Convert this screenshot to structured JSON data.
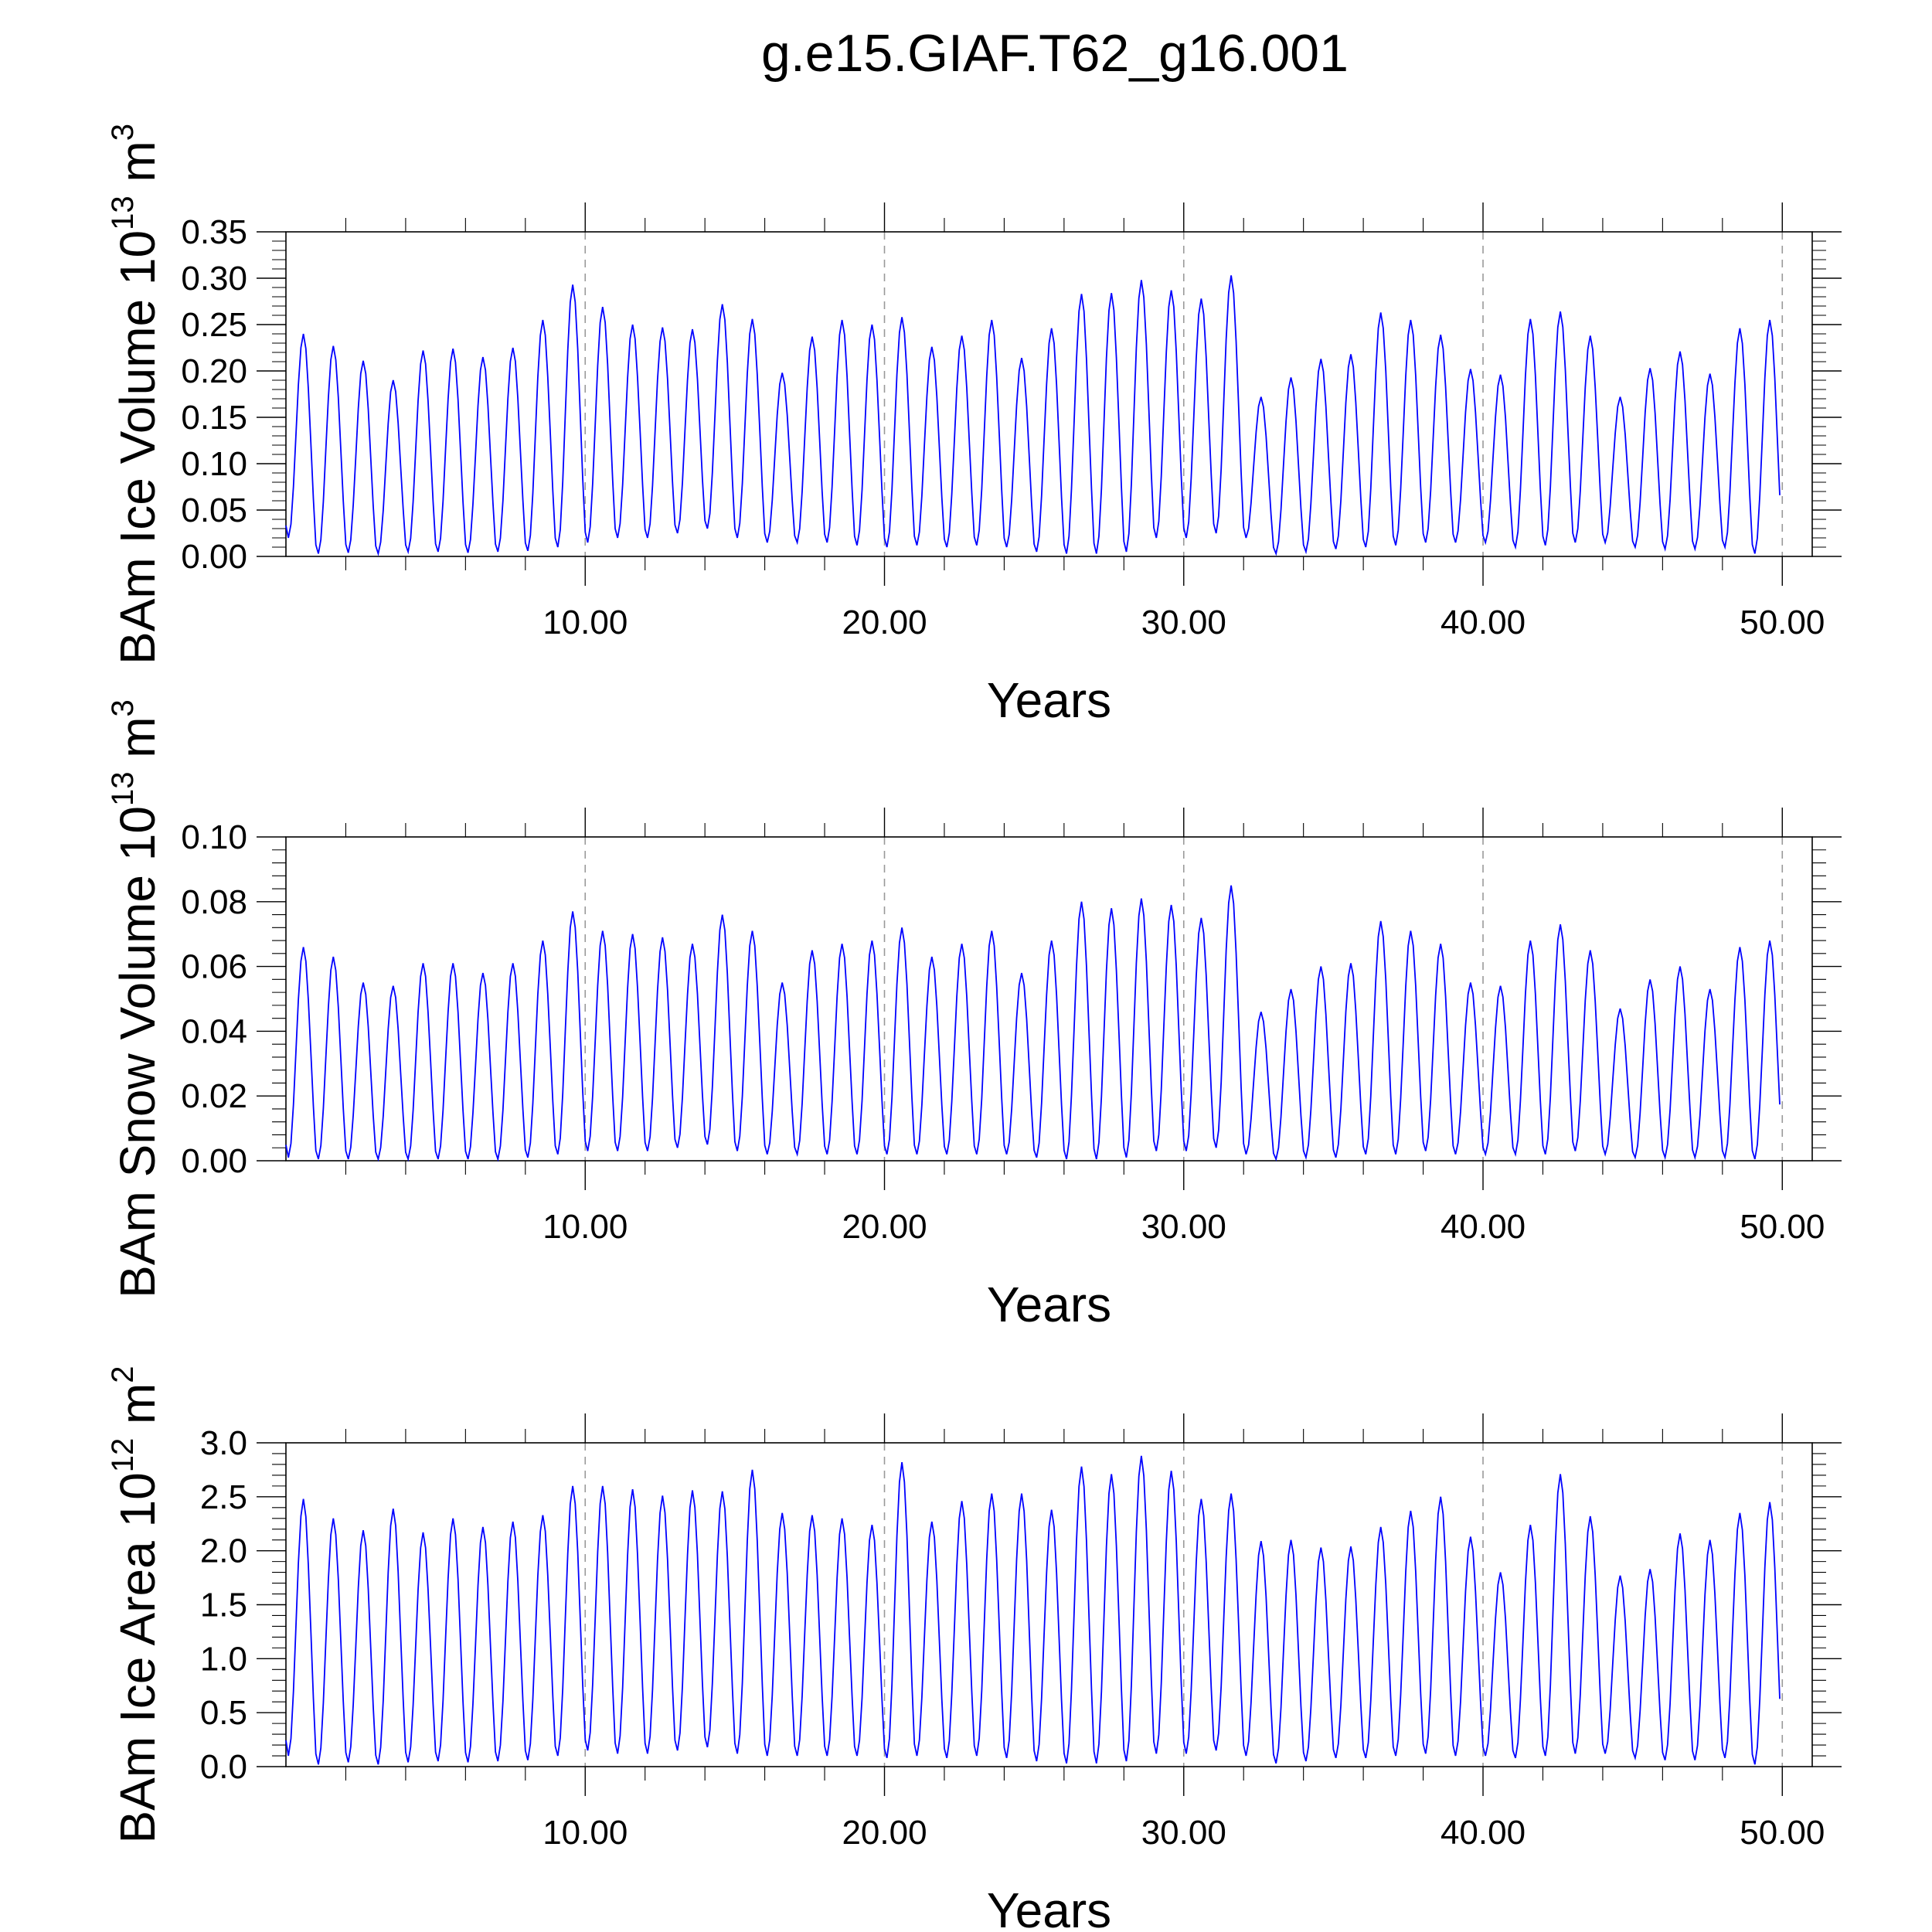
{
  "figure": {
    "title": "g.e15.GIAF.T62_g16.001"
  },
  "colors": {
    "series": "#0000ff",
    "axes": "#000000",
    "grid": "#999999"
  },
  "chart_data": [
    {
      "type": "line",
      "title": "",
      "xlabel": "Years",
      "ylabel": "BAm Ice Volume",
      "ylabel_unit_base": "10",
      "ylabel_unit_exp": "13",
      "ylabel_unit_symbol": "m",
      "ylabel_unit_symbol_exp": "3",
      "xlim": [
        0,
        51
      ],
      "ylim": [
        0,
        0.35
      ],
      "xtick_values": [
        10,
        20,
        30,
        40,
        50
      ],
      "xtick_labels": [
        "10.00",
        "20.00",
        "30.00",
        "40.00",
        "50.00"
      ],
      "ytick_values": [
        0,
        0.05,
        0.1,
        0.15,
        0.2,
        0.25,
        0.3,
        0.35
      ],
      "ytick_labels": [
        "0.00",
        "0.05",
        "0.10",
        "0.15",
        "0.20",
        "0.25",
        "0.30",
        "0.35"
      ],
      "grid": "vertical dashed at major x ticks",
      "legend": "none",
      "series": [
        {
          "sampling": "monthly, one annual cycle per year starting at year 0",
          "annual_min": [
            0.02,
            0.003,
            0.004,
            0.003,
            0.005,
            0.005,
            0.004,
            0.005,
            0.006,
            0.01,
            0.015,
            0.02,
            0.02,
            0.025,
            0.03,
            0.02,
            0.015,
            0.015,
            0.015,
            0.012,
            0.01,
            0.012,
            0.01,
            0.012,
            0.01,
            0.005,
            0.003,
            0.003,
            0.005,
            0.02,
            0.02,
            0.025,
            0.02,
            0.003,
            0.005,
            0.008,
            0.01,
            0.012,
            0.015,
            0.015,
            0.015,
            0.01,
            0.012,
            0.015,
            0.015,
            0.01,
            0.008,
            0.008,
            0.01,
            0.003
          ],
          "annual_max": [
            0.24,
            0.227,
            0.211,
            0.19,
            0.222,
            0.224,
            0.215,
            0.225,
            0.255,
            0.293,
            0.269,
            0.25,
            0.247,
            0.245,
            0.272,
            0.256,
            0.198,
            0.237,
            0.255,
            0.25,
            0.258,
            0.226,
            0.238,
            0.255,
            0.214,
            0.246,
            0.283,
            0.284,
            0.298,
            0.287,
            0.278,
            0.303,
            0.172,
            0.193,
            0.213,
            0.218,
            0.263,
            0.255,
            0.239,
            0.202,
            0.196,
            0.256,
            0.264,
            0.238,
            0.172,
            0.203,
            0.221,
            0.197,
            0.246,
            0.255
          ]
        }
      ]
    },
    {
      "type": "line",
      "title": "",
      "xlabel": "Years",
      "ylabel": "BAm Snow Volume",
      "ylabel_unit_base": "10",
      "ylabel_unit_exp": "13",
      "ylabel_unit_symbol": "m",
      "ylabel_unit_symbol_exp": "3",
      "xlim": [
        0,
        51
      ],
      "ylim": [
        0,
        0.1
      ],
      "xtick_values": [
        10,
        20,
        30,
        40,
        50
      ],
      "xtick_labels": [
        "10.00",
        "20.00",
        "30.00",
        "40.00",
        "50.00"
      ],
      "ytick_values": [
        0,
        0.02,
        0.04,
        0.06,
        0.08,
        0.1
      ],
      "ytick_labels": [
        "0.00",
        "0.02",
        "0.04",
        "0.06",
        "0.08",
        "0.10"
      ],
      "grid": "vertical dashed at major x ticks",
      "legend": "none",
      "series": [
        {
          "sampling": "monthly, one annual cycle per year starting at year 0",
          "annual_min": [
            0.001,
            0.0005,
            0.0005,
            0.0005,
            0.0005,
            0.0005,
            0.0005,
            0.0005,
            0.001,
            0.002,
            0.003,
            0.003,
            0.003,
            0.004,
            0.005,
            0.003,
            0.002,
            0.002,
            0.002,
            0.002,
            0.002,
            0.002,
            0.002,
            0.002,
            0.002,
            0.001,
            0.0005,
            0.0005,
            0.001,
            0.003,
            0.003,
            0.004,
            0.002,
            0.0005,
            0.001,
            0.001,
            0.002,
            0.002,
            0.003,
            0.002,
            0.002,
            0.002,
            0.002,
            0.003,
            0.002,
            0.001,
            0.001,
            0.001,
            0.001,
            0.0005
          ],
          "annual_max": [
            0.066,
            0.063,
            0.055,
            0.054,
            0.061,
            0.061,
            0.058,
            0.061,
            0.068,
            0.077,
            0.071,
            0.07,
            0.069,
            0.067,
            0.076,
            0.071,
            0.055,
            0.065,
            0.067,
            0.068,
            0.072,
            0.063,
            0.067,
            0.071,
            0.058,
            0.068,
            0.08,
            0.078,
            0.081,
            0.079,
            0.075,
            0.085,
            0.046,
            0.053,
            0.06,
            0.061,
            0.074,
            0.071,
            0.067,
            0.055,
            0.054,
            0.068,
            0.073,
            0.065,
            0.047,
            0.056,
            0.06,
            0.053,
            0.066,
            0.068
          ]
        }
      ]
    },
    {
      "type": "line",
      "title": "",
      "xlabel": "Years",
      "ylabel": "BAm Ice Area",
      "ylabel_unit_base": "10",
      "ylabel_unit_exp": "12",
      "ylabel_unit_symbol": "m",
      "ylabel_unit_symbol_exp": "2",
      "xlim": [
        0,
        51
      ],
      "ylim": [
        0,
        3.0
      ],
      "xtick_values": [
        10,
        20,
        30,
        40,
        50
      ],
      "xtick_labels": [
        "10.00",
        "20.00",
        "30.00",
        "40.00",
        "50.00"
      ],
      "ytick_values": [
        0,
        0.5,
        1.0,
        1.5,
        2.0,
        2.5,
        3.0
      ],
      "ytick_labels": [
        "0.0",
        "0.5",
        "1.0",
        "1.5",
        "2.0",
        "2.5",
        "3.0"
      ],
      "grid": "vertical dashed at major x ticks",
      "legend": "none",
      "series": [
        {
          "sampling": "monthly, one annual cycle per year starting at year 0",
          "annual_min": [
            0.1,
            0.02,
            0.04,
            0.02,
            0.04,
            0.05,
            0.04,
            0.05,
            0.06,
            0.1,
            0.15,
            0.12,
            0.12,
            0.15,
            0.18,
            0.12,
            0.1,
            0.1,
            0.1,
            0.1,
            0.08,
            0.1,
            0.08,
            0.1,
            0.08,
            0.05,
            0.03,
            0.03,
            0.05,
            0.12,
            0.12,
            0.15,
            0.1,
            0.03,
            0.05,
            0.08,
            0.08,
            0.1,
            0.12,
            0.1,
            0.1,
            0.08,
            0.1,
            0.12,
            0.12,
            0.08,
            0.06,
            0.06,
            0.08,
            0.02
          ],
          "annual_max": [
            2.48,
            2.3,
            2.19,
            2.39,
            2.17,
            2.3,
            2.22,
            2.27,
            2.33,
            2.6,
            2.6,
            2.57,
            2.51,
            2.56,
            2.55,
            2.75,
            2.35,
            2.33,
            2.3,
            2.24,
            2.82,
            2.27,
            2.46,
            2.53,
            2.53,
            2.38,
            2.78,
            2.71,
            2.88,
            2.74,
            2.48,
            2.53,
            2.09,
            2.1,
            2.03,
            2.04,
            2.22,
            2.37,
            2.5,
            2.13,
            1.8,
            2.24,
            2.71,
            2.32,
            1.77,
            1.83,
            2.16,
            2.1,
            2.35,
            2.45
          ]
        }
      ]
    }
  ]
}
